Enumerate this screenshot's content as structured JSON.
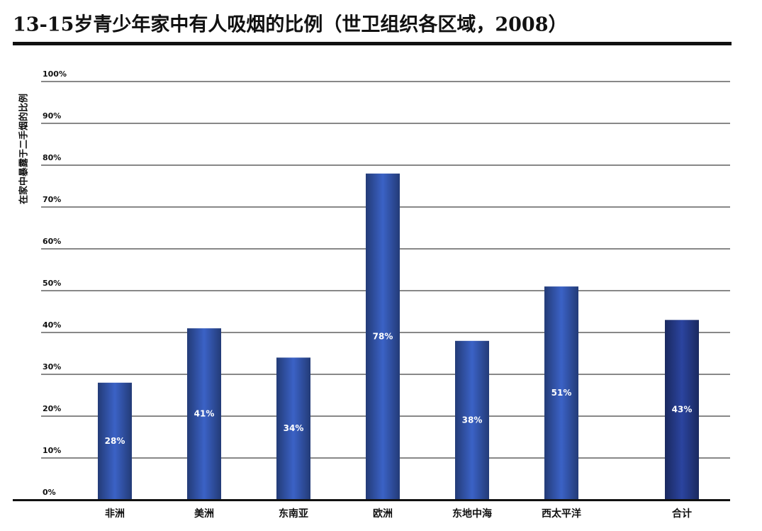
{
  "chart_data": {
    "type": "bar",
    "title": "13-15岁青少年家中有人吸烟的比例（世卫组织各区域，2008）",
    "y_label": "在家中暴露于二手烟的比例",
    "categories": [
      "非洲",
      "美洲",
      "东南亚",
      "欧洲",
      "东地中海",
      "西太平洋",
      "合计"
    ],
    "values": [
      28,
      41,
      34,
      78,
      38,
      51,
      43
    ],
    "value_labels": [
      "28%",
      "41%",
      "34%",
      "78%",
      "38%",
      "51%",
      "43%"
    ],
    "colors": [
      "#2f4e9e",
      "#2f4e9e",
      "#2f4e9e",
      "#2f4e9e",
      "#2f4e9e",
      "#2f4e9e",
      "#22367f"
    ],
    "ylim": [
      0,
      100
    ],
    "yticks": [
      {
        "value": 0,
        "label": "0%"
      },
      {
        "value": 10,
        "label": "10%"
      },
      {
        "value": 20,
        "label": "20%"
      },
      {
        "value": 30,
        "label": "30%"
      },
      {
        "value": 40,
        "label": "40%"
      },
      {
        "value": 50,
        "label": "50%"
      },
      {
        "value": 60,
        "label": "60%"
      },
      {
        "value": 70,
        "label": "70%"
      },
      {
        "value": 80,
        "label": "80%"
      },
      {
        "value": 90,
        "label": "90%"
      },
      {
        "value": 100,
        "label": "100%"
      }
    ],
    "grid": true
  }
}
